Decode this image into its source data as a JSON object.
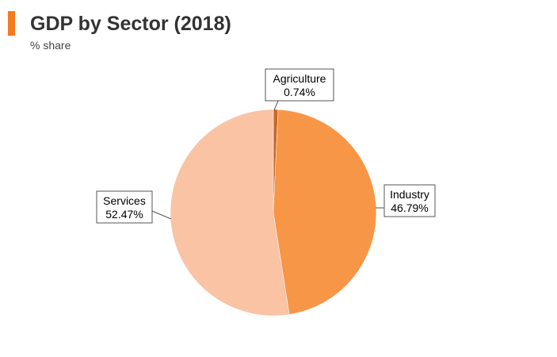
{
  "header": {
    "title": "GDP by Sector (2018)",
    "subtitle": "% share",
    "accent_color": "#f47a20"
  },
  "chart_data": {
    "type": "pie",
    "title": "GDP by Sector (2018)",
    "subtitle": "% share",
    "slices": [
      {
        "name": "Agriculture",
        "value": 0.74,
        "label": "0.74%",
        "color": "#c8682a"
      },
      {
        "name": "Industry",
        "value": 46.79,
        "label": "46.79%",
        "color": "#f79646"
      },
      {
        "name": "Services",
        "value": 52.47,
        "label": "52.47%",
        "color": "#f9c3a4"
      }
    ],
    "start_angle_deg": 0,
    "direction": "clockwise",
    "legend": "none"
  }
}
